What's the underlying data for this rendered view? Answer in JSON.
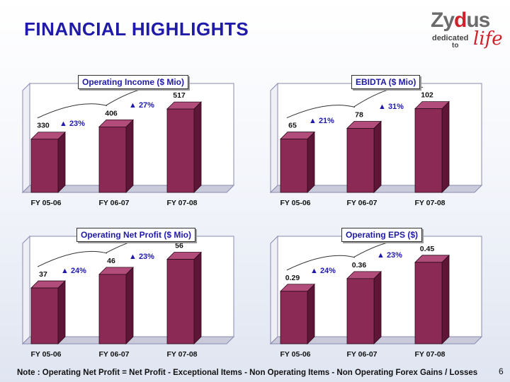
{
  "title": "FINANCIAL HIGHLIGHTS",
  "logo": {
    "brand_a": "Zy",
    "brand_b": "d",
    "brand_c": "us",
    "tagline_1": "dedicated",
    "tagline_2": "to",
    "tagline_3": "life"
  },
  "colors": {
    "bar_front": "#8b2a55",
    "bar_side": "#5e1537",
    "bar_top": "#b24d7b",
    "title_text": "#1f1aa8"
  },
  "chart_data": [
    {
      "type": "bar",
      "title": "Operating Income ($ Mio)",
      "categories": [
        "FY 05-06",
        "FY 06-07",
        "FY 07-08"
      ],
      "values": [
        330,
        406,
        517
      ],
      "ylim": [
        0,
        570
      ],
      "growth": [
        "▲ 23%",
        "▲ 27%"
      ]
    },
    {
      "type": "bar",
      "title": "EBIDTA ($ Mio)",
      "categories": [
        "FY 05-06",
        "FY 06-07",
        "FY 07-08"
      ],
      "values": [
        65,
        78,
        102
      ],
      "ylim": [
        0,
        112
      ],
      "growth": [
        "▲ 21%",
        "▲ 31%"
      ]
    },
    {
      "type": "bar",
      "title": "Operating Net Profit ($ Mio)",
      "categories": [
        "FY 05-06",
        "FY 06-07",
        "FY 07-08"
      ],
      "values": [
        37,
        46,
        56
      ],
      "ylim": [
        0,
        60
      ],
      "growth": [
        "▲ 24%",
        "▲ 23%"
      ]
    },
    {
      "type": "bar",
      "title": "Operating EPS ($)",
      "categories": [
        "FY 05-06",
        "FY 06-07",
        "FY 07-08"
      ],
      "values": [
        0.29,
        0.36,
        0.45
      ],
      "value_labels": [
        "0.29",
        "0.36",
        "0.45"
      ],
      "ylim": [
        0,
        0.5
      ],
      "growth": [
        "▲ 24%",
        "▲ 23%"
      ]
    }
  ],
  "note": "Note : Operating Net Profit = Net Profit - Exceptional Items - Non Operating Items - Non Operating Forex Gains / Losses",
  "page_number": "6"
}
